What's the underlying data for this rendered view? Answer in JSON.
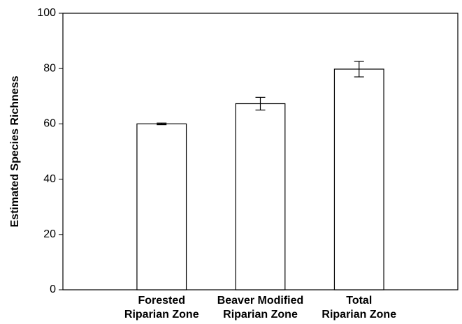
{
  "chart_data": {
    "type": "bar",
    "y_label": "Estimated Species Richness",
    "categories": [
      null,
      "Forested\nRiparian Zone",
      "Beaver Modified\nRiparian Zone",
      "Total\nRiparian Zone"
    ],
    "values": [
      null,
      60,
      67.3,
      79.8
    ],
    "errors": [
      null,
      0.3,
      2.3,
      2.8
    ],
    "color": "#ffffff",
    "ylim": [
      0,
      100
    ],
    "yticks": [
      0,
      20,
      40,
      60,
      80,
      100
    ],
    "grid": false
  }
}
